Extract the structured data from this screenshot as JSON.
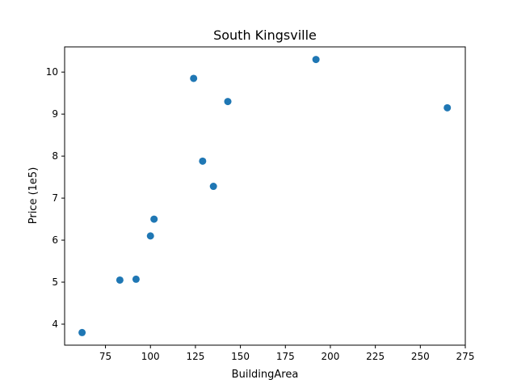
{
  "chart_data": {
    "type": "scatter",
    "title": "South Kingsville",
    "xlabel": "BuildingArea",
    "ylabel": "Price (1e5)",
    "xlim": [
      52.3,
      275.0
    ],
    "ylim": [
      3.5,
      10.6
    ],
    "xticks": [
      75,
      100,
      125,
      150,
      175,
      200,
      225,
      250,
      275
    ],
    "yticks": [
      4,
      5,
      6,
      7,
      8,
      9,
      10
    ],
    "grid": false,
    "color": "#1f77b4",
    "points": [
      {
        "x": 62,
        "y": 3.8
      },
      {
        "x": 83,
        "y": 5.05
      },
      {
        "x": 92,
        "y": 5.07
      },
      {
        "x": 100,
        "y": 6.1
      },
      {
        "x": 102,
        "y": 6.5
      },
      {
        "x": 124,
        "y": 9.85
      },
      {
        "x": 129,
        "y": 7.88
      },
      {
        "x": 135,
        "y": 7.28
      },
      {
        "x": 143,
        "y": 9.3
      },
      {
        "x": 192,
        "y": 10.3
      },
      {
        "x": 265,
        "y": 9.15
      }
    ]
  }
}
